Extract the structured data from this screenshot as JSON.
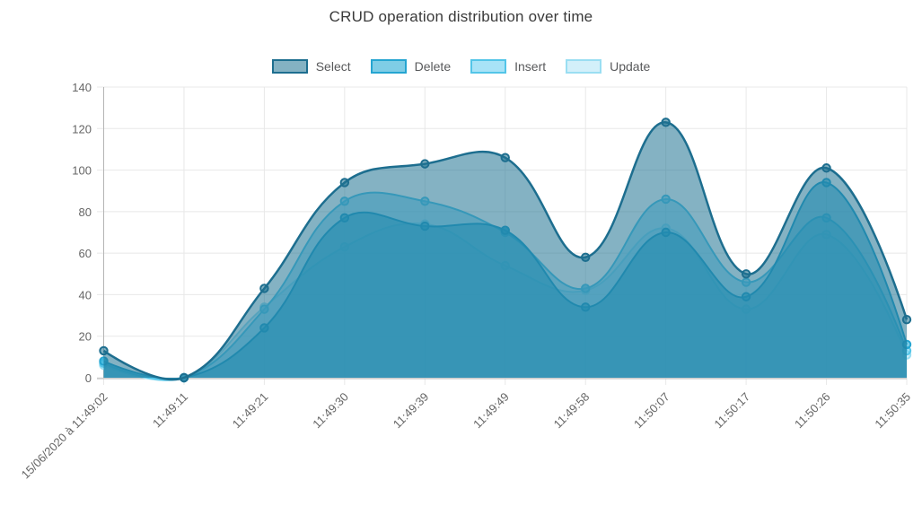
{
  "chart_data": {
    "type": "area",
    "title": "CRUD operation distribution over time",
    "x_labels": [
      "15/06/2020 à 11:49:02",
      "11:49:11",
      "11:49:21",
      "11:49:30",
      "11:49:39",
      "11:49:49",
      "11:49:58",
      "11:50:07",
      "11:50:17",
      "11:50:26",
      "11:50:35"
    ],
    "y_ticks": [
      0,
      20,
      40,
      60,
      80,
      100,
      120,
      140
    ],
    "ylim": [
      0,
      140
    ],
    "grid": true,
    "legend_position": "top",
    "series": [
      {
        "name": "Select",
        "border": "#1d6e8f",
        "fill": "rgba(31,115,146,0.55)",
        "line_width": 2.5,
        "values": [
          13,
          0,
          43,
          94,
          103,
          106,
          58,
          123,
          50,
          101,
          28
        ]
      },
      {
        "name": "Delete",
        "border": "#25a5d1",
        "fill": "rgba(41,171,213,0.6)",
        "line_width": 2,
        "values": [
          8,
          0,
          24,
          77,
          73,
          71,
          34,
          70,
          39,
          94,
          16
        ]
      },
      {
        "name": "Insert",
        "border": "#53c5e8",
        "fill": "rgba(96,204,240,0.55)",
        "line_width": 2,
        "values": [
          7,
          0,
          33,
          85,
          85,
          70,
          43,
          86,
          46,
          77,
          13
        ]
      },
      {
        "name": "Update",
        "border": "#9adef2",
        "fill": "rgba(168,226,245,0.5)",
        "line_width": 2,
        "values": [
          6,
          0,
          34,
          63,
          74,
          54,
          42,
          72,
          33,
          69,
          11
        ]
      }
    ],
    "style": {
      "grid_color": "#e8e8e8",
      "axis_line_color": "#b5b5b5",
      "tick_text_color": "#666666",
      "title_color": "#3a3a3a",
      "background": "#ffffff"
    }
  }
}
